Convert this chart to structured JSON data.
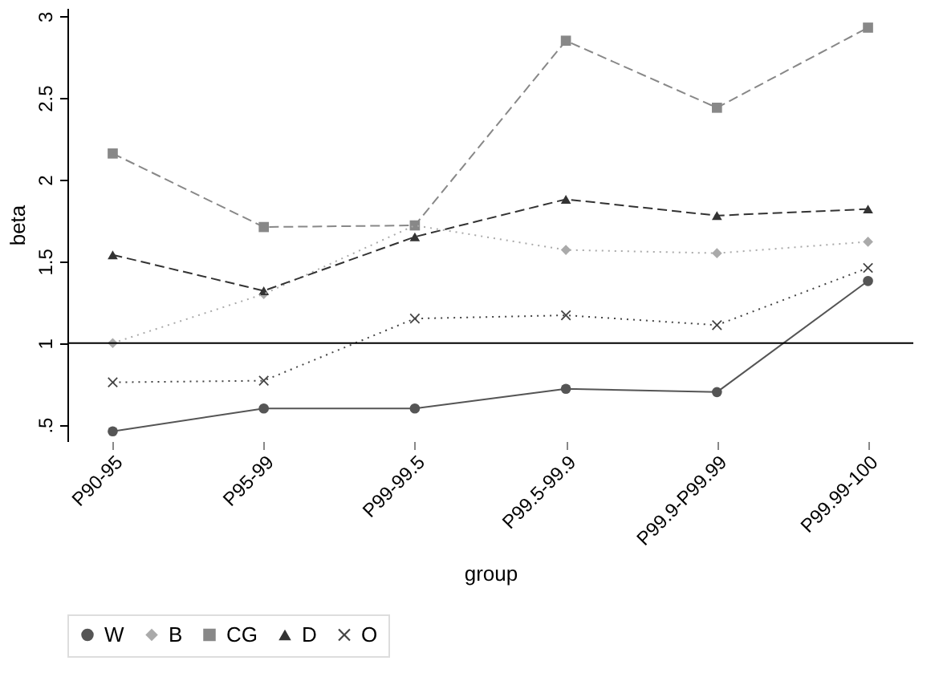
{
  "chart_data": {
    "type": "line",
    "xlabel": "group",
    "ylabel": "beta",
    "categories": [
      "P90-95",
      "P95-99",
      "P99-99.5",
      "P99.5-99.9",
      "P99.9-P99.99",
      "P99.99-100"
    ],
    "series": [
      {
        "name": "W",
        "color": "#555555",
        "marker": "circle",
        "line_style": "solid",
        "values": [
          0.46,
          0.6,
          0.6,
          0.72,
          0.7,
          1.38
        ]
      },
      {
        "name": "B",
        "color": "#aaaaaa",
        "marker": "diamond",
        "line_style": "dotted",
        "values": [
          1.0,
          1.3,
          1.72,
          1.57,
          1.55,
          1.62
        ]
      },
      {
        "name": "CG",
        "color": "#888888",
        "marker": "square",
        "line_style": "dashed",
        "values": [
          2.16,
          1.71,
          1.72,
          2.85,
          2.44,
          2.93
        ]
      },
      {
        "name": "D",
        "color": "#333333",
        "marker": "triangle",
        "line_style": "dashed",
        "values": [
          1.54,
          1.32,
          1.65,
          1.88,
          1.78,
          1.82
        ]
      },
      {
        "name": "O",
        "color": "#444444",
        "marker": "cross",
        "line_style": "dotted",
        "values": [
          0.76,
          0.77,
          1.15,
          1.17,
          1.11,
          1.46
        ]
      }
    ],
    "ylim": [
      0.4,
      3.05
    ],
    "yticks": [
      {
        "value": 0.5,
        "label": ".5"
      },
      1,
      1.5,
      2,
      2.5,
      3
    ],
    "ref_lines": [
      {
        "axis": "y",
        "value": 1,
        "color": "#000000",
        "line_style": "solid"
      }
    ],
    "grid": false,
    "legend": "bottom"
  }
}
